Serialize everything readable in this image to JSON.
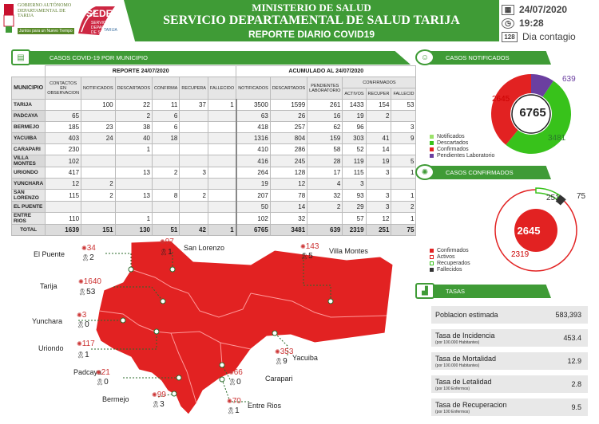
{
  "header": {
    "gob_text": "GOBIERNO AUTÓNOMO DEPARTAMENTAL DE TARIJA",
    "gob_tag": "Juntos para un Nuevo Tiempo",
    "sedes_logo": "SEDES",
    "sedes_sub": "SERVICIO DEPARTAMENTAL DE SALUD",
    "sedes_sub2": "TARIJA",
    "title1": "MINISTERIO DE SALUD",
    "title2": "SERVICIO DEPARTAMENTAL DE SALUD TARIJA",
    "title3": "REPORTE DIARIO COVID19",
    "date": "24/07/2020",
    "time": "19:28",
    "day_num": "128",
    "day_label": "Dia contagio"
  },
  "colors": {
    "green": "#3f9b36",
    "red": "#e22222",
    "purple": "#6b3fa0",
    "lime": "#38c21b"
  },
  "table": {
    "section_title": "CASOS COVID-19 POR MUNICIPIO",
    "group1": "REPORTE 24/07/2020",
    "group2": "ACUMULADO AL 24/07/2020",
    "confirmados_group": "CONFIRMADOS",
    "municipio_header": "MUNICIPIO",
    "cols_daily": [
      "CONTACTOS EN OBSERVACION",
      "NOTIFICADOS",
      "DESCARTADOS",
      "CONFIRMA",
      "RECUPERA",
      "FALLECIDO"
    ],
    "cols_acum": [
      "NOTIFICADOS",
      "DESCARTADOS",
      "PENDIENTES LABORATORIO",
      "ACTIVOS",
      "RECUPER",
      "FALLECID"
    ],
    "rows": [
      {
        "name": "TARIJA",
        "v": [
          "",
          "100",
          "22",
          "11",
          "37",
          "1",
          "3500",
          "1599",
          "261",
          "1433",
          "154",
          "53"
        ]
      },
      {
        "name": "PADCAYA",
        "v": [
          "65",
          "",
          "2",
          "6",
          "",
          "",
          "63",
          "26",
          "16",
          "19",
          "2",
          ""
        ]
      },
      {
        "name": "BERMEJO",
        "v": [
          "185",
          "23",
          "38",
          "6",
          "",
          "",
          "418",
          "257",
          "62",
          "96",
          "",
          "3"
        ]
      },
      {
        "name": "YACUIBA",
        "v": [
          "403",
          "24",
          "40",
          "18",
          "",
          "",
          "1316",
          "804",
          "159",
          "303",
          "41",
          "9"
        ]
      },
      {
        "name": "CARAPARI",
        "v": [
          "230",
          "",
          "1",
          "",
          "",
          "",
          "410",
          "286",
          "58",
          "52",
          "14",
          ""
        ]
      },
      {
        "name": "VILLA MONTES",
        "v": [
          "102",
          "",
          "",
          "",
          "",
          "",
          "416",
          "245",
          "28",
          "119",
          "19",
          "5"
        ]
      },
      {
        "name": "URIONDO",
        "v": [
          "417",
          "",
          "13",
          "2",
          "3",
          "",
          "264",
          "128",
          "17",
          "115",
          "3",
          "1"
        ]
      },
      {
        "name": "YUNCHARA",
        "v": [
          "12",
          "2",
          "",
          "",
          "",
          "",
          "19",
          "12",
          "4",
          "3",
          "",
          ""
        ]
      },
      {
        "name": "SAN LORENZO",
        "v": [
          "115",
          "2",
          "13",
          "8",
          "2",
          "",
          "207",
          "78",
          "32",
          "93",
          "3",
          "1"
        ]
      },
      {
        "name": "EL PUENTE",
        "v": [
          "",
          "",
          "",
          "",
          "",
          "",
          "50",
          "14",
          "2",
          "29",
          "3",
          "2"
        ]
      },
      {
        "name": "ENTRE RIOS",
        "v": [
          "110",
          "",
          "1",
          "",
          "",
          "",
          "102",
          "32",
          "",
          "57",
          "12",
          "1"
        ]
      }
    ],
    "total": {
      "name": "TOTAL",
      "v": [
        "1639",
        "151",
        "130",
        "51",
        "42",
        "1",
        "6765",
        "3481",
        "639",
        "2319",
        "251",
        "75"
      ]
    }
  },
  "notificados": {
    "title": "CASOS NOTIFICADOS",
    "center": "6765",
    "label_confirmados": "2645",
    "label_descartados": "3481",
    "label_pendientes": "639",
    "legend": [
      "Notificados",
      "Descartados",
      "Confirmados",
      "Pendientes Laboratorio"
    ],
    "chart_data": {
      "type": "pie",
      "categories": [
        "Descartados",
        "Confirmados",
        "Pendientes Laboratorio"
      ],
      "values": [
        3481,
        2645,
        639
      ]
    }
  },
  "confirmados": {
    "title": "CASOS CONFIRMADOS",
    "center": "2645",
    "label_activos": "2319",
    "label_recuperados": "251",
    "label_fallecidos": "75",
    "legend": [
      "Confirmados",
      "Activos",
      "Recuperados",
      "Fallecidos"
    ],
    "chart_data": {
      "type": "pie",
      "categories": [
        "Activos",
        "Recuperados",
        "Fallecidos"
      ],
      "values": [
        2319,
        251,
        75
      ]
    }
  },
  "tasas": {
    "title": "TASAS",
    "items": [
      {
        "label": "Poblacion estimada",
        "sub": "",
        "value": "583,393"
      },
      {
        "label": "Tasa de Incidencia",
        "sub": "(por 100.000 Habitantes)",
        "value": "453.4"
      },
      {
        "label": "Tasa de Mortalidad",
        "sub": "(por 100.000 Habitantes)",
        "value": "12.9"
      },
      {
        "label": "Tasa de Letalidad",
        "sub": "(por 100 Enfermos)",
        "value": "2.8"
      },
      {
        "label": "Tasa de Recuperacion",
        "sub": "(por 100 Enfermos)",
        "value": "9.5"
      }
    ]
  },
  "map": {
    "places": [
      {
        "name": "El Puente",
        "cases": "34",
        "deaths": "2"
      },
      {
        "name": "San Lorenzo",
        "cases": "97",
        "deaths": "1"
      },
      {
        "name": "Villa Montes",
        "cases": "143",
        "deaths": "5"
      },
      {
        "name": "Tarija",
        "cases": "1640",
        "deaths": "53"
      },
      {
        "name": "Yunchara",
        "cases": "3",
        "deaths": "0"
      },
      {
        "name": "Uriondo",
        "cases": "117",
        "deaths": "1"
      },
      {
        "name": "Yacuiba",
        "cases": "353",
        "deaths": "9"
      },
      {
        "name": "Padcaya",
        "cases": "21",
        "deaths": "0"
      },
      {
        "name": "Carapari",
        "cases": "66",
        "deaths": "0"
      },
      {
        "name": "Bermejo",
        "cases": "99",
        "deaths": "3"
      },
      {
        "name": "Entre Rios",
        "cases": "70",
        "deaths": "1"
      }
    ]
  }
}
